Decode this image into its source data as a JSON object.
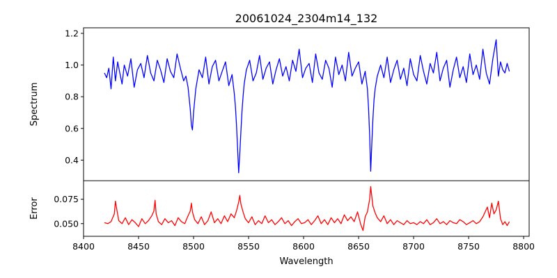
{
  "chart_data": [
    {
      "type": "line",
      "title": "20061024_2304m14_132",
      "xlabel": "",
      "ylabel": "Spectrum",
      "xlim": [
        8400,
        8805
      ],
      "ylim": [
        0.27,
        1.235
      ],
      "xticks": [
        8400,
        8450,
        8500,
        8550,
        8600,
        8650,
        8700,
        8750,
        8800
      ],
      "yticks": [
        0.4,
        0.6,
        0.8,
        1.0,
        1.2
      ],
      "ytick_labels": [
        "0.4",
        "0.6",
        "0.8",
        "1.0",
        "1.2"
      ],
      "grid": false,
      "series": [
        {
          "color": "#0000ff",
          "x": [
            8419,
            8421,
            8423,
            8425,
            8427,
            8429,
            8431,
            8433,
            8435,
            8437,
            8440,
            8443,
            8446,
            8449,
            8452,
            8455,
            8458,
            8461,
            8464,
            8467,
            8470,
            8473,
            8476,
            8479,
            8482,
            8485,
            8488,
            8491,
            8493,
            8495,
            8497,
            8498,
            8499,
            8500,
            8502,
            8505,
            8508,
            8511,
            8514,
            8517,
            8520,
            8523,
            8526,
            8529,
            8532,
            8535,
            8537,
            8538,
            8539,
            8540,
            8541,
            8542,
            8543,
            8544,
            8545,
            8546,
            8548,
            8551,
            8554,
            8557,
            8560,
            8563,
            8566,
            8569,
            8572,
            8575,
            8578,
            8581,
            8584,
            8587,
            8590,
            8593,
            8596,
            8599,
            8602,
            8605,
            8608,
            8611,
            8614,
            8617,
            8620,
            8623,
            8626,
            8629,
            8632,
            8635,
            8638,
            8641,
            8644,
            8647,
            8650,
            8653,
            8656,
            8658,
            8659,
            8660,
            8661,
            8662,
            8663,
            8664,
            8665,
            8667,
            8670,
            8673,
            8676,
            8679,
            8682,
            8685,
            8688,
            8691,
            8694,
            8697,
            8700,
            8703,
            8706,
            8709,
            8712,
            8715,
            8718,
            8721,
            8724,
            8727,
            8730,
            8733,
            8736,
            8739,
            8742,
            8745,
            8748,
            8751,
            8754,
            8757,
            8760,
            8763,
            8766,
            8769,
            8772,
            8775,
            8777,
            8779,
            8781,
            8783,
            8785,
            8787
          ],
          "y": [
            0.95,
            0.92,
            0.98,
            0.85,
            1.05,
            0.9,
            1.02,
            0.95,
            0.88,
            1.0,
            0.93,
            1.04,
            0.86,
            0.97,
            1.01,
            0.92,
            1.06,
            0.95,
            0.9,
            1.03,
            0.97,
            0.89,
            1.04,
            0.96,
            0.92,
            1.07,
            0.98,
            0.9,
            0.93,
            0.86,
            0.72,
            0.62,
            0.59,
            0.7,
            0.85,
            0.97,
            0.92,
            1.05,
            0.88,
            0.99,
            1.03,
            0.9,
            0.96,
            1.02,
            0.87,
            0.94,
            0.82,
            0.74,
            0.62,
            0.48,
            0.32,
            0.44,
            0.58,
            0.71,
            0.8,
            0.88,
            0.97,
            1.03,
            0.9,
            0.95,
            1.06,
            0.91,
            0.98,
            1.02,
            0.88,
            0.97,
            1.04,
            0.93,
            0.99,
            0.9,
            1.03,
            0.96,
            1.1,
            0.92,
            0.98,
            1.01,
            0.89,
            1.07,
            0.95,
            0.91,
            1.03,
            0.98,
            0.86,
            1.05,
            0.94,
            1.0,
            0.9,
            1.08,
            0.93,
            0.98,
            1.02,
            0.88,
            0.96,
            0.85,
            0.73,
            0.56,
            0.33,
            0.5,
            0.66,
            0.78,
            0.85,
            0.93,
            1.0,
            0.92,
            1.05,
            0.89,
            0.97,
            1.03,
            0.91,
            0.98,
            0.87,
            1.04,
            0.94,
            0.9,
            1.06,
            0.96,
            0.88,
            1.01,
            0.95,
            1.08,
            0.9,
            0.98,
            1.03,
            0.86,
            0.97,
            1.05,
            0.92,
            0.99,
            0.89,
            1.07,
            0.94,
            1.0,
            0.91,
            1.1,
            0.95,
            0.88,
            1.04,
            1.16,
            0.93,
            1.02,
            0.97,
            0.95,
            1.01,
            0.96
          ]
        }
      ]
    },
    {
      "type": "line",
      "title": "",
      "xlabel": "Wavelength",
      "ylabel": "Error",
      "xlim": [
        8400,
        8805
      ],
      "ylim": [
        0.037,
        0.094
      ],
      "xticks": [
        8400,
        8450,
        8500,
        8550,
        8600,
        8650,
        8700,
        8750,
        8800
      ],
      "xtick_labels": [
        "8400",
        "8450",
        "8500",
        "8550",
        "8600",
        "8650",
        "8700",
        "8750",
        "8800"
      ],
      "yticks": [
        0.05,
        0.075
      ],
      "ytick_labels": [
        "0.050",
        "0.075"
      ],
      "grid": false,
      "series": [
        {
          "color": "#ff0000",
          "x": [
            8419,
            8422,
            8425,
            8428,
            8429,
            8430,
            8432,
            8435,
            8438,
            8441,
            8444,
            8447,
            8450,
            8453,
            8456,
            8459,
            8462,
            8464,
            8465,
            8466,
            8468,
            8471,
            8474,
            8477,
            8480,
            8483,
            8486,
            8489,
            8492,
            8495,
            8497,
            8498,
            8499,
            8501,
            8504,
            8507,
            8510,
            8513,
            8516,
            8519,
            8522,
            8525,
            8528,
            8531,
            8534,
            8537,
            8539,
            8541,
            8542,
            8543,
            8545,
            8547,
            8550,
            8553,
            8556,
            8559,
            8562,
            8565,
            8568,
            8571,
            8574,
            8577,
            8580,
            8583,
            8586,
            8589,
            8592,
            8595,
            8598,
            8601,
            8604,
            8607,
            8610,
            8613,
            8616,
            8619,
            8622,
            8625,
            8628,
            8631,
            8634,
            8637,
            8640,
            8643,
            8646,
            8649,
            8652,
            8654,
            8656,
            8658,
            8660,
            8661,
            8662,
            8663,
            8665,
            8667,
            8670,
            8673,
            8676,
            8679,
            8682,
            8685,
            8688,
            8691,
            8694,
            8697,
            8700,
            8703,
            8706,
            8709,
            8712,
            8715,
            8718,
            8721,
            8724,
            8727,
            8730,
            8733,
            8736,
            8739,
            8742,
            8745,
            8748,
            8751,
            8754,
            8757,
            8760,
            8763,
            8765,
            8767,
            8769,
            8771,
            8773,
            8775,
            8777,
            8779,
            8781,
            8783,
            8785,
            8787
          ],
          "y": [
            0.051,
            0.05,
            0.052,
            0.06,
            0.073,
            0.066,
            0.053,
            0.05,
            0.056,
            0.049,
            0.054,
            0.051,
            0.047,
            0.055,
            0.05,
            0.053,
            0.058,
            0.063,
            0.074,
            0.06,
            0.052,
            0.049,
            0.055,
            0.051,
            0.053,
            0.048,
            0.056,
            0.052,
            0.05,
            0.058,
            0.063,
            0.071,
            0.062,
            0.054,
            0.05,
            0.057,
            0.049,
            0.053,
            0.062,
            0.051,
            0.055,
            0.05,
            0.058,
            0.052,
            0.06,
            0.056,
            0.063,
            0.072,
            0.079,
            0.07,
            0.062,
            0.055,
            0.051,
            0.057,
            0.049,
            0.053,
            0.05,
            0.058,
            0.051,
            0.054,
            0.049,
            0.052,
            0.056,
            0.05,
            0.053,
            0.048,
            0.052,
            0.055,
            0.05,
            0.051,
            0.054,
            0.049,
            0.053,
            0.058,
            0.05,
            0.054,
            0.049,
            0.056,
            0.051,
            0.055,
            0.05,
            0.059,
            0.053,
            0.057,
            0.052,
            0.062,
            0.049,
            0.043,
            0.057,
            0.062,
            0.075,
            0.088,
            0.078,
            0.068,
            0.061,
            0.056,
            0.052,
            0.058,
            0.05,
            0.054,
            0.049,
            0.053,
            0.051,
            0.049,
            0.053,
            0.05,
            0.051,
            0.049,
            0.052,
            0.05,
            0.054,
            0.049,
            0.051,
            0.055,
            0.05,
            0.052,
            0.049,
            0.053,
            0.051,
            0.05,
            0.054,
            0.052,
            0.049,
            0.051,
            0.053,
            0.05,
            0.052,
            0.057,
            0.062,
            0.067,
            0.056,
            0.071,
            0.06,
            0.064,
            0.073,
            0.055,
            0.049,
            0.052,
            0.048,
            0.052
          ]
        }
      ]
    }
  ]
}
